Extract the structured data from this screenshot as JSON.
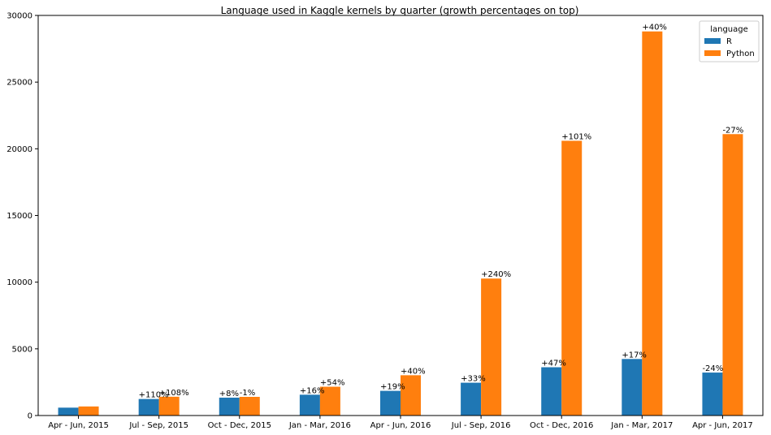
{
  "chart_data": {
    "type": "bar",
    "title": "Language used in Kaggle kernels by quarter (growth percentages on top)",
    "xlabel": "",
    "ylabel": "",
    "ylim": [
      0,
      30000
    ],
    "yticks": [
      0,
      5000,
      10000,
      15000,
      20000,
      25000,
      30000
    ],
    "grid": false,
    "legend": {
      "title": "language",
      "placement": "top-right"
    },
    "categories": [
      "Apr - Jun, 2015",
      "Jul - Sep, 2015",
      "Oct - Dec, 2015",
      "Jan - Mar, 2016",
      "Apr - Jun, 2016",
      "Jul - Sep, 2016",
      "Oct - Dec, 2016",
      "Jan - Mar, 2017",
      "Apr - Jun, 2017"
    ],
    "series": [
      {
        "name": "R",
        "color": "#1f77b4",
        "values": [
          590,
          1240,
          1340,
          1560,
          1850,
          2460,
          3620,
          4240,
          3220
        ],
        "labels": [
          "",
          "+110%",
          "+8%",
          "+16%",
          "+19%",
          "+33%",
          "+47%",
          "+17%",
          "-24%"
        ]
      },
      {
        "name": "Python",
        "color": "#ff7f0e",
        "values": [
          680,
          1410,
          1400,
          2160,
          3020,
          10270,
          20600,
          28800,
          21100
        ],
        "labels": [
          "",
          "+108%",
          "-1%",
          "+54%",
          "+40%",
          "+240%",
          "+101%",
          "+40%",
          "-27%"
        ]
      }
    ]
  }
}
